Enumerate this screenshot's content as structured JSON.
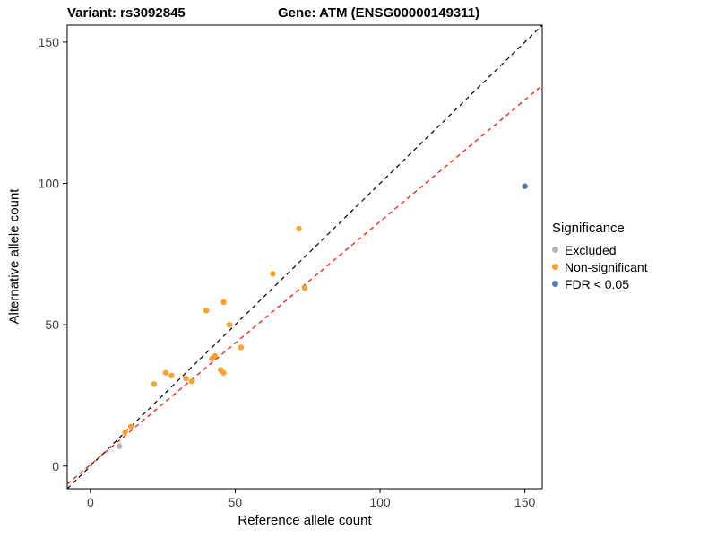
{
  "chart_data": {
    "type": "scatter",
    "titles": [
      "Variant: rs3092845",
      "Gene: ATM (ENSG00000149311)"
    ],
    "xlabel": "Reference allele count",
    "ylabel": "Alternative allele count",
    "xlim": [
      -8,
      156
    ],
    "ylim": [
      -8,
      156
    ],
    "xticks": [
      0,
      50,
      100,
      150
    ],
    "yticks": [
      0,
      50,
      100,
      150
    ],
    "grid": false,
    "panel_border_color": "#000000",
    "legend": {
      "title": "Significance",
      "position": "right",
      "entries": [
        {
          "label": "Excluded",
          "color": "#b3b3b3"
        },
        {
          "label": "Non-significant",
          "color": "#f8a12f"
        },
        {
          "label": "FDR < 0.05",
          "color": "#4f7cac"
        }
      ]
    },
    "series": [
      {
        "name": "Excluded",
        "color": "#b3b3b3",
        "points": [
          [
            10,
            7
          ]
        ]
      },
      {
        "name": "Non-significant",
        "color": "#f8a12f",
        "points": [
          [
            12,
            12
          ],
          [
            14,
            14
          ],
          [
            22,
            29
          ],
          [
            26,
            33
          ],
          [
            28,
            32
          ],
          [
            33,
            31
          ],
          [
            35,
            30
          ],
          [
            40,
            55
          ],
          [
            42,
            38
          ],
          [
            43,
            39
          ],
          [
            45,
            34
          ],
          [
            46,
            33
          ],
          [
            46,
            58
          ],
          [
            48,
            50
          ],
          [
            52,
            42
          ],
          [
            63,
            68
          ],
          [
            72,
            84
          ],
          [
            74,
            63
          ]
        ]
      },
      {
        "name": "FDR < 0.05",
        "color": "#4f7cac",
        "points": [
          [
            150,
            99
          ]
        ]
      }
    ],
    "lines": [
      {
        "name": "identity-line",
        "color": "#000000",
        "dash": "5,4",
        "x1": -8,
        "y1": -8,
        "x2": 156,
        "y2": 156
      },
      {
        "name": "regression-line",
        "color": "#ff0000",
        "dash": "5,4",
        "x1": -8,
        "y1": -6.4,
        "x2": 156,
        "y2": 134.7
      }
    ]
  }
}
